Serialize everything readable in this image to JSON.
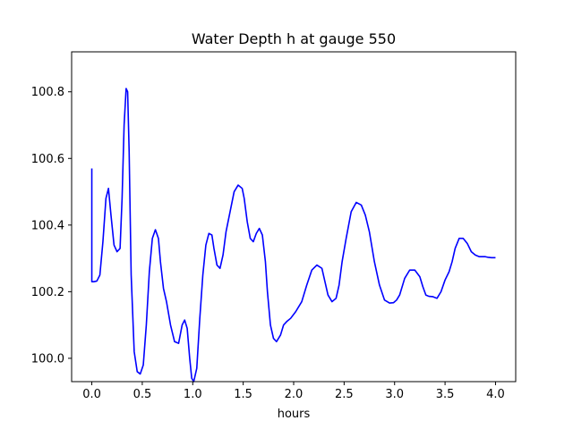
{
  "chart_data": {
    "type": "line",
    "title": "Water Depth h at gauge 550",
    "xlabel": "hours",
    "ylabel": "",
    "xlim": [
      -0.2,
      4.2
    ],
    "ylim": [
      99.93,
      100.92
    ],
    "xticks": [
      "0.0",
      "0.5",
      "1.0",
      "1.5",
      "2.0",
      "2.5",
      "3.0",
      "3.5",
      "4.0"
    ],
    "yticks": [
      "100.0",
      "100.2",
      "100.4",
      "100.6",
      "100.8"
    ],
    "grid": false,
    "series": [
      {
        "color": "#0000ff",
        "x": [
          0.0,
          0.0,
          0.02,
          0.05,
          0.08,
          0.11,
          0.14,
          0.165,
          0.19,
          0.22,
          0.25,
          0.28,
          0.3,
          0.32,
          0.34,
          0.355,
          0.37,
          0.39,
          0.42,
          0.45,
          0.48,
          0.51,
          0.54,
          0.57,
          0.6,
          0.63,
          0.66,
          0.68,
          0.71,
          0.74,
          0.78,
          0.82,
          0.86,
          0.895,
          0.92,
          0.945,
          0.97,
          0.99,
          1.01,
          1.04,
          1.07,
          1.1,
          1.13,
          1.16,
          1.19,
          1.21,
          1.24,
          1.27,
          1.3,
          1.33,
          1.37,
          1.41,
          1.45,
          1.49,
          1.51,
          1.54,
          1.57,
          1.6,
          1.63,
          1.66,
          1.69,
          1.72,
          1.74,
          1.77,
          1.8,
          1.83,
          1.87,
          1.9,
          1.93,
          1.97,
          2.02,
          2.08,
          2.13,
          2.18,
          2.23,
          2.28,
          2.31,
          2.34,
          2.38,
          2.42,
          2.45,
          2.48,
          2.52,
          2.57,
          2.62,
          2.67,
          2.71,
          2.75,
          2.8,
          2.85,
          2.9,
          2.95,
          2.99,
          3.02,
          3.05,
          3.1,
          3.15,
          3.2,
          3.25,
          3.28,
          3.31,
          3.34,
          3.38,
          3.42,
          3.46,
          3.5,
          3.54,
          3.57,
          3.6,
          3.64,
          3.68,
          3.72,
          3.76,
          3.8,
          3.84,
          3.87,
          3.9,
          3.93,
          3.96,
          4.0
        ],
        "y": [
          100.57,
          100.23,
          100.23,
          100.232,
          100.25,
          100.35,
          100.48,
          100.51,
          100.43,
          100.34,
          100.32,
          100.33,
          100.48,
          100.7,
          100.81,
          100.8,
          100.62,
          100.25,
          100.02,
          99.96,
          99.953,
          99.98,
          100.1,
          100.26,
          100.36,
          100.386,
          100.36,
          100.29,
          100.21,
          100.17,
          100.1,
          100.05,
          100.045,
          100.1,
          100.115,
          100.09,
          100.0,
          99.94,
          99.93,
          99.97,
          100.12,
          100.25,
          100.34,
          100.375,
          100.37,
          100.33,
          100.28,
          100.27,
          100.31,
          100.38,
          100.44,
          100.5,
          100.52,
          100.51,
          100.48,
          100.41,
          100.36,
          100.35,
          100.375,
          100.39,
          100.37,
          100.29,
          100.2,
          100.1,
          100.06,
          100.05,
          100.07,
          100.1,
          100.11,
          100.12,
          100.14,
          100.17,
          100.22,
          100.265,
          100.28,
          100.27,
          100.23,
          100.19,
          100.17,
          100.18,
          100.22,
          100.29,
          100.36,
          100.44,
          100.468,
          100.46,
          100.43,
          100.38,
          100.29,
          100.22,
          100.175,
          100.166,
          100.167,
          100.175,
          100.19,
          100.24,
          100.265,
          100.265,
          100.245,
          100.215,
          100.19,
          100.186,
          100.185,
          100.18,
          100.2,
          100.235,
          100.26,
          100.29,
          100.33,
          100.36,
          100.36,
          100.345,
          100.32,
          100.31,
          100.305,
          100.305,
          100.305,
          100.303,
          100.302,
          100.302
        ]
      }
    ]
  }
}
